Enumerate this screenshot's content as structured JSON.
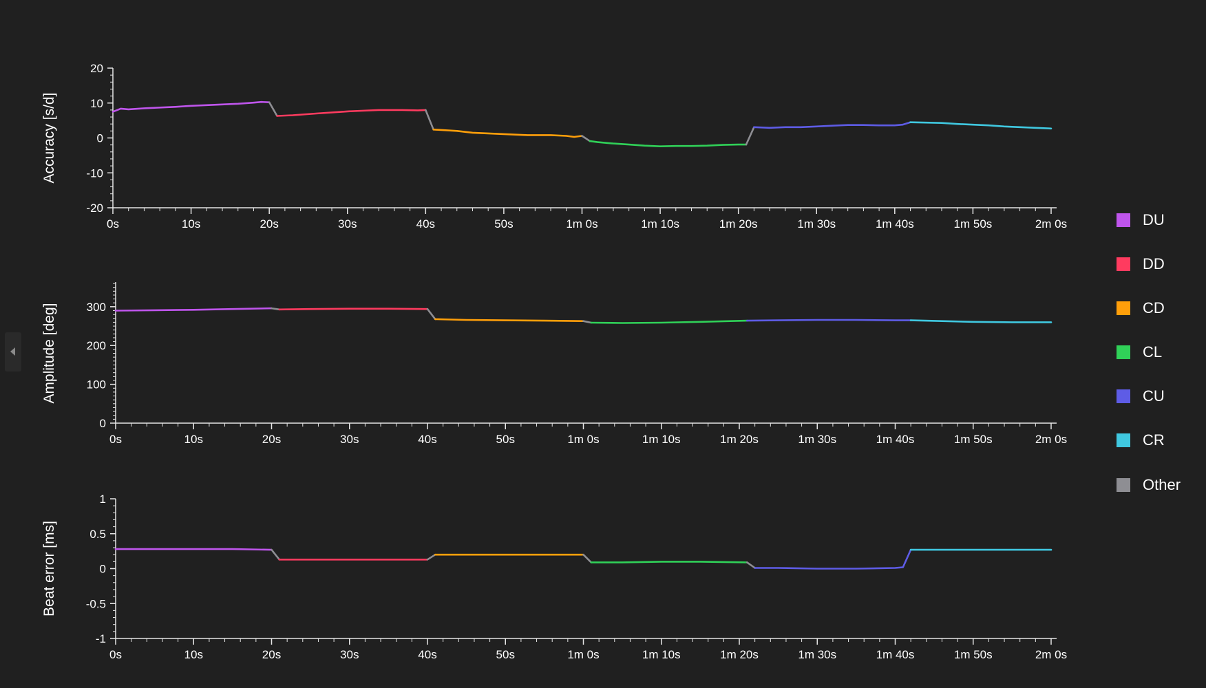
{
  "segment_colors": {
    "DU": "#bf55ec",
    "DD": "#ff3b5f",
    "CD": "#ff9f0a",
    "CL": "#30d158",
    "CU": "#5e5ce6",
    "CR": "#40c8e0",
    "Other": "#8e8e93"
  },
  "legend": {
    "items": [
      {
        "label": "DU",
        "color": "#bf55ec"
      },
      {
        "label": "DD",
        "color": "#ff3b5f"
      },
      {
        "label": "CD",
        "color": "#ff9f0a"
      },
      {
        "label": "CL",
        "color": "#30d158"
      },
      {
        "label": "CU",
        "color": "#5e5ce6"
      },
      {
        "label": "CR",
        "color": "#40c8e0"
      },
      {
        "label": "Other",
        "color": "#8e8e93"
      }
    ]
  },
  "chart_data": [
    {
      "type": "line",
      "ylabel": "Accuracy [s/d]",
      "ylim": [
        -20,
        20
      ],
      "yticks": [
        "20",
        "10",
        "0",
        "-10",
        "-20"
      ],
      "yticks_values": [
        20,
        10,
        0,
        -10,
        -20
      ],
      "xlim": [
        0,
        120
      ],
      "xticks": [
        "0s",
        "10s",
        "20s",
        "30s",
        "40s",
        "50s",
        "1m 0s",
        "1m 10s",
        "1m 20s",
        "1m 30s",
        "1m 40s",
        "1m 50s",
        "2m 0s"
      ],
      "series": [
        {
          "segment": "DU",
          "x": [
            0,
            1,
            2,
            4,
            6,
            8,
            10,
            12,
            14,
            16,
            18,
            19,
            20
          ],
          "y": [
            7.5,
            8.4,
            8.2,
            8.5,
            8.7,
            8.9,
            9.2,
            9.4,
            9.6,
            9.8,
            10.1,
            10.3,
            10.2
          ]
        },
        {
          "segment": "Other",
          "x": [
            20,
            21
          ],
          "y": [
            10.2,
            6.3
          ]
        },
        {
          "segment": "DD",
          "x": [
            21,
            23,
            26,
            30,
            34,
            37,
            39,
            40
          ],
          "y": [
            6.3,
            6.5,
            7.0,
            7.6,
            8.0,
            8.0,
            7.9,
            8.0
          ]
        },
        {
          "segment": "Other",
          "x": [
            40,
            41
          ],
          "y": [
            8.0,
            2.4
          ]
        },
        {
          "segment": "CD",
          "x": [
            41,
            44,
            46,
            48,
            51,
            53,
            56,
            58,
            59,
            60
          ],
          "y": [
            2.4,
            2.0,
            1.5,
            1.3,
            1.0,
            0.8,
            0.8,
            0.6,
            0.3,
            0.6
          ]
        },
        {
          "segment": "Other",
          "x": [
            60,
            61
          ],
          "y": [
            0.6,
            -0.9
          ]
        },
        {
          "segment": "CL",
          "x": [
            61,
            62,
            64,
            66,
            68,
            70,
            72,
            74,
            76,
            78,
            80,
            81
          ],
          "y": [
            -0.9,
            -1.2,
            -1.6,
            -1.9,
            -2.2,
            -2.4,
            -2.3,
            -2.3,
            -2.2,
            -2.0,
            -1.9,
            -1.9
          ]
        },
        {
          "segment": "Other",
          "x": [
            81,
            82
          ],
          "y": [
            -1.9,
            3.1
          ]
        },
        {
          "segment": "CU",
          "x": [
            82,
            84,
            86,
            88,
            90,
            92,
            94,
            96,
            98,
            100,
            101,
            102
          ],
          "y": [
            3.1,
            2.9,
            3.1,
            3.1,
            3.3,
            3.5,
            3.7,
            3.7,
            3.6,
            3.6,
            3.8,
            4.5
          ]
        },
        {
          "segment": "CR",
          "x": [
            102,
            104,
            106,
            108,
            110,
            112,
            114,
            116,
            118,
            120
          ],
          "y": [
            4.5,
            4.4,
            4.3,
            4.0,
            3.8,
            3.6,
            3.3,
            3.1,
            2.9,
            2.7
          ]
        }
      ]
    },
    {
      "type": "line",
      "ylabel": "Amplitude [deg]",
      "ylim": [
        0,
        360
      ],
      "yticks": [
        "300",
        "200",
        "100",
        "0"
      ],
      "yticks_values": [
        300,
        200,
        100,
        0
      ],
      "xlim": [
        0,
        120
      ],
      "xticks": [
        "0s",
        "10s",
        "20s",
        "30s",
        "40s",
        "50s",
        "1m 0s",
        "1m 10s",
        "1m 20s",
        "1m 30s",
        "1m 40s",
        "1m 50s",
        "2m 0s"
      ],
      "series": [
        {
          "segment": "DU",
          "x": [
            0,
            5,
            10,
            15,
            20
          ],
          "y": [
            290,
            291,
            292,
            294,
            296
          ]
        },
        {
          "segment": "Other",
          "x": [
            20,
            21
          ],
          "y": [
            296,
            293
          ]
        },
        {
          "segment": "DD",
          "x": [
            21,
            25,
            30,
            35,
            40
          ],
          "y": [
            293,
            294,
            295,
            295,
            294
          ]
        },
        {
          "segment": "Other",
          "x": [
            40,
            41
          ],
          "y": [
            294,
            268
          ]
        },
        {
          "segment": "CD",
          "x": [
            41,
            45,
            50,
            55,
            60
          ],
          "y": [
            268,
            266,
            265,
            264,
            263
          ]
        },
        {
          "segment": "Other",
          "x": [
            60,
            61
          ],
          "y": [
            263,
            259
          ]
        },
        {
          "segment": "CL",
          "x": [
            61,
            65,
            70,
            75,
            81
          ],
          "y": [
            259,
            258,
            259,
            261,
            264
          ]
        },
        {
          "segment": "CU",
          "x": [
            81,
            85,
            90,
            95,
            100,
            102
          ],
          "y": [
            264,
            265,
            266,
            266,
            265,
            265
          ]
        },
        {
          "segment": "CR",
          "x": [
            102,
            106,
            110,
            115,
            120
          ],
          "y": [
            265,
            263,
            261,
            260,
            260
          ]
        }
      ]
    },
    {
      "type": "line",
      "ylabel": "Beat error [ms]",
      "ylim": [
        -1,
        1
      ],
      "yticks": [
        "1",
        "0.5",
        "0",
        "-0.5",
        "-1"
      ],
      "yticks_values": [
        1,
        0.5,
        0,
        -0.5,
        -1
      ],
      "xlim": [
        0,
        120
      ],
      "xticks": [
        "0s",
        "10s",
        "20s",
        "30s",
        "40s",
        "50s",
        "1m 0s",
        "1m 10s",
        "1m 20s",
        "1m 30s",
        "1m 40s",
        "1m 50s",
        "2m 0s"
      ],
      "series": [
        {
          "segment": "DU",
          "x": [
            0,
            5,
            10,
            15,
            20
          ],
          "y": [
            0.28,
            0.28,
            0.28,
            0.28,
            0.27
          ]
        },
        {
          "segment": "Other",
          "x": [
            20,
            21
          ],
          "y": [
            0.27,
            0.13
          ]
        },
        {
          "segment": "DD",
          "x": [
            21,
            25,
            30,
            35,
            40
          ],
          "y": [
            0.13,
            0.13,
            0.13,
            0.13,
            0.13
          ]
        },
        {
          "segment": "Other",
          "x": [
            40,
            41
          ],
          "y": [
            0.13,
            0.2
          ]
        },
        {
          "segment": "CD",
          "x": [
            41,
            45,
            50,
            55,
            60
          ],
          "y": [
            0.2,
            0.2,
            0.2,
            0.2,
            0.2
          ]
        },
        {
          "segment": "Other",
          "x": [
            60,
            61
          ],
          "y": [
            0.2,
            0.09
          ]
        },
        {
          "segment": "CL",
          "x": [
            61,
            65,
            70,
            75,
            81
          ],
          "y": [
            0.09,
            0.09,
            0.1,
            0.1,
            0.09
          ]
        },
        {
          "segment": "Other",
          "x": [
            81,
            82
          ],
          "y": [
            0.09,
            0.01
          ]
        },
        {
          "segment": "CU",
          "x": [
            82,
            85,
            90,
            95,
            100,
            101,
            102
          ],
          "y": [
            0.01,
            0.01,
            0.0,
            0.0,
            0.01,
            0.02,
            0.27
          ]
        },
        {
          "segment": "CR",
          "x": [
            102,
            106,
            110,
            115,
            120
          ],
          "y": [
            0.27,
            0.27,
            0.27,
            0.27,
            0.27
          ]
        }
      ]
    }
  ]
}
